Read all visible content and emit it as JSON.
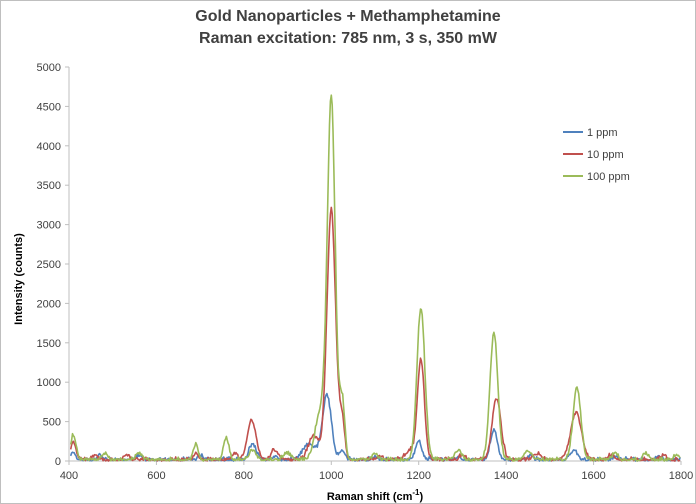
{
  "chart_data": {
    "type": "line",
    "title": "Gold Nanoparticles + Methamphetamine",
    "subtitle": "Raman excitation: 785 nm, 3 s, 350 mW",
    "xlabel": "Raman shift (cm-1)",
    "xlabel_main": "Raman shift (cm",
    "xlabel_sup": "-1",
    "xlabel_end": ")",
    "ylabel": "Intensity (counts)",
    "xlim": [
      400,
      1800
    ],
    "ylim": [
      0,
      5000
    ],
    "x_ticks": [
      "400",
      "600",
      "800",
      "1000",
      "1200",
      "1400",
      "1600",
      "1800"
    ],
    "y_ticks": [
      "0",
      "500",
      "1000",
      "1500",
      "2000",
      "2500",
      "3000",
      "3500",
      "4000",
      "4500",
      "5000"
    ],
    "grid": false,
    "legend_position": "top-right",
    "series": [
      {
        "name": "1 ppm",
        "color": "#4f81bd",
        "peaks": [
          [
            410,
            80,
            5
          ],
          [
            470,
            60,
            5
          ],
          [
            560,
            50,
            6
          ],
          [
            700,
            60,
            5
          ],
          [
            820,
            200,
            8
          ],
          [
            870,
            40,
            6
          ],
          [
            950,
            200,
            15
          ],
          [
            990,
            820,
            10
          ],
          [
            1025,
            120,
            6
          ],
          [
            1100,
            40,
            6
          ],
          [
            1200,
            240,
            7
          ],
          [
            1290,
            40,
            6
          ],
          [
            1372,
            380,
            8
          ],
          [
            1455,
            50,
            6
          ],
          [
            1555,
            120,
            8
          ],
          [
            1650,
            40,
            6
          ],
          [
            1750,
            40,
            6
          ]
        ]
      },
      {
        "name": "10 ppm",
        "color": "#c0504d",
        "peaks": [
          [
            410,
            230,
            6
          ],
          [
            460,
            70,
            5
          ],
          [
            530,
            60,
            6
          ],
          [
            690,
            70,
            5
          ],
          [
            780,
            80,
            6
          ],
          [
            818,
            500,
            10
          ],
          [
            870,
            120,
            8
          ],
          [
            960,
            300,
            12
          ],
          [
            1000,
            3170,
            10
          ],
          [
            1025,
            480,
            6
          ],
          [
            1110,
            60,
            6
          ],
          [
            1180,
            120,
            10
          ],
          [
            1205,
            1280,
            8
          ],
          [
            1300,
            60,
            6
          ],
          [
            1378,
            780,
            10
          ],
          [
            1470,
            80,
            8
          ],
          [
            1560,
            600,
            12
          ],
          [
            1640,
            60,
            6
          ],
          [
            1760,
            60,
            6
          ]
        ]
      },
      {
        "name": "100 ppm",
        "color": "#9bbb59",
        "peaks": [
          [
            410,
            320,
            6
          ],
          [
            480,
            80,
            6
          ],
          [
            560,
            90,
            6
          ],
          [
            690,
            200,
            5
          ],
          [
            760,
            280,
            6
          ],
          [
            820,
            120,
            8
          ],
          [
            900,
            80,
            8
          ],
          [
            975,
            600,
            12
          ],
          [
            1000,
            4560,
            9
          ],
          [
            1025,
            740,
            6
          ],
          [
            1100,
            80,
            6
          ],
          [
            1205,
            1930,
            9
          ],
          [
            1290,
            120,
            8
          ],
          [
            1372,
            1610,
            9
          ],
          [
            1450,
            120,
            8
          ],
          [
            1562,
            910,
            9
          ],
          [
            1650,
            90,
            6
          ],
          [
            1720,
            80,
            6
          ],
          [
            1790,
            60,
            6
          ]
        ]
      }
    ]
  }
}
